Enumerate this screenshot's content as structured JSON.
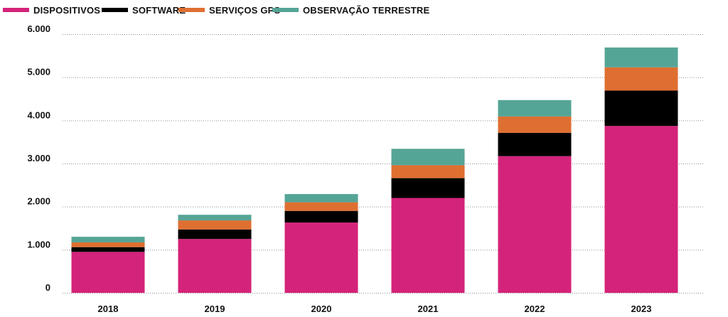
{
  "chart_data": {
    "type": "bar",
    "stacked": true,
    "categories": [
      "2018",
      "2019",
      "2020",
      "2021",
      "2022",
      "2023"
    ],
    "series": [
      {
        "name": "DISPOSITIVOS",
        "color": "#d4237a",
        "values": [
          950,
          1250,
          1630,
          2200,
          3170,
          3870
        ]
      },
      {
        "name": "SOFTWARE",
        "color": "#000000",
        "values": [
          110,
          220,
          270,
          460,
          540,
          820
        ]
      },
      {
        "name": "SERVIÇOS GPS",
        "color": "#de6f31",
        "values": [
          110,
          210,
          200,
          300,
          380,
          540
        ]
      },
      {
        "name": "OBSERVAÇÃO TERRESTRE",
        "color": "#55a596",
        "values": [
          130,
          130,
          190,
          380,
          380,
          460
        ]
      }
    ],
    "yticks": [
      "0",
      "1.000",
      "2.000",
      "3.000",
      "4.000",
      "5.000",
      "6.000"
    ],
    "ylim": [
      0,
      6000
    ],
    "grid": true,
    "legend_position": "top-left",
    "title": "",
    "xlabel": "",
    "ylabel": ""
  }
}
